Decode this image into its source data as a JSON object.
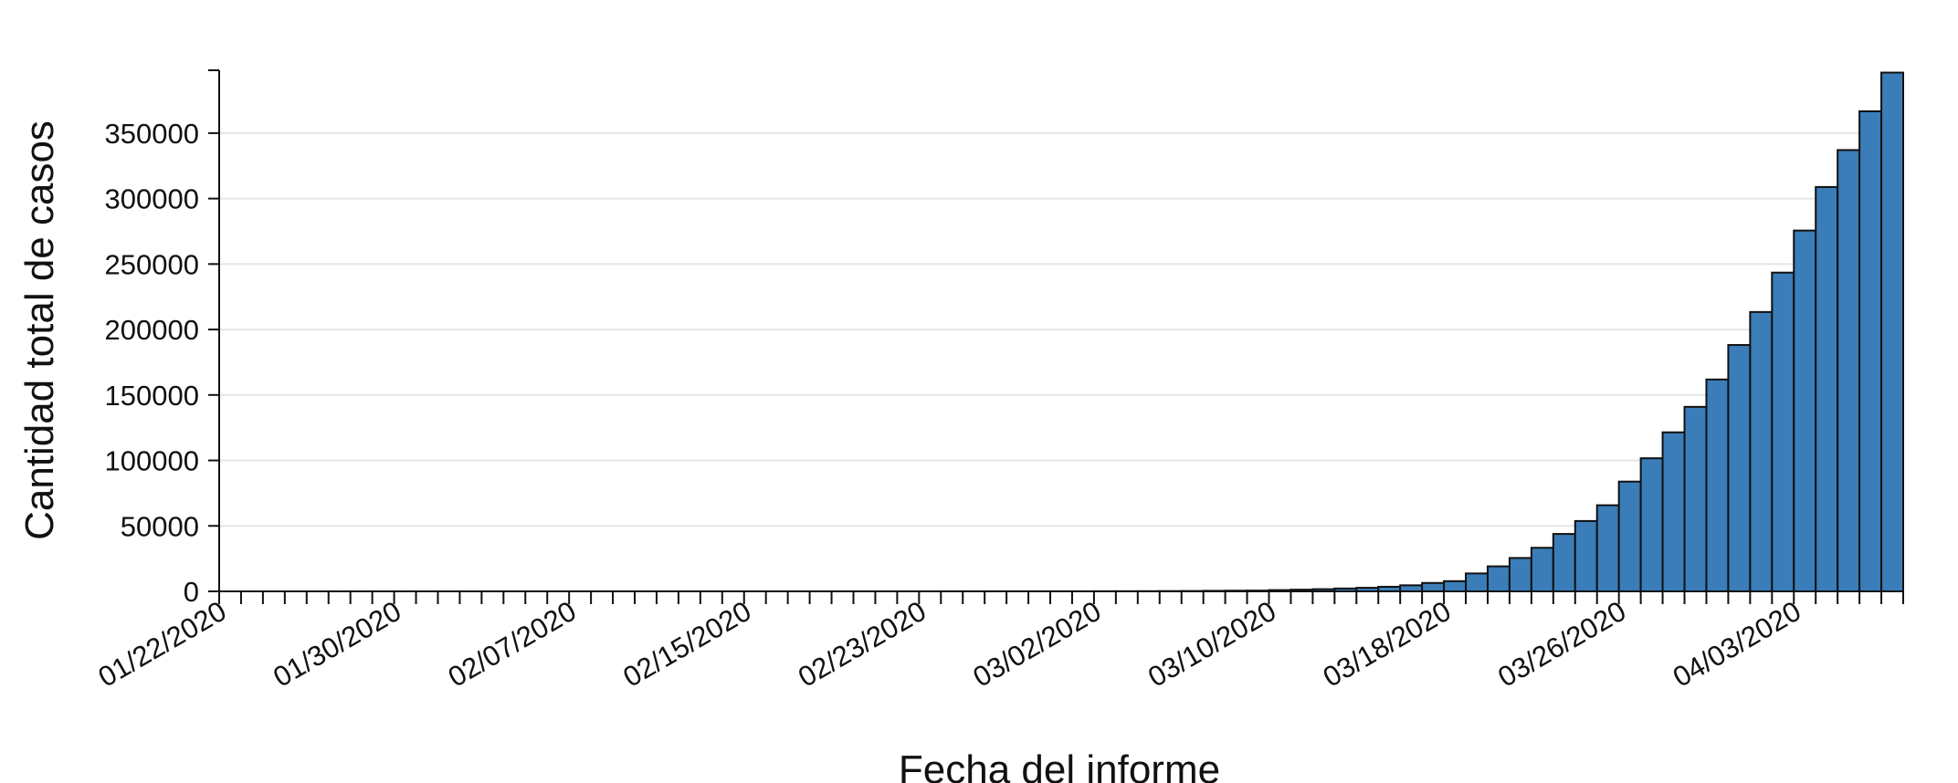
{
  "chart_data": {
    "type": "bar",
    "xlabel": "Fecha del informe",
    "ylabel": "Cantidad total de casos",
    "ylim": [
      0,
      398000
    ],
    "grid": true,
    "colors": {
      "bar_fill": "#3a7db8",
      "bar_stroke": "#111111",
      "grid": "#e6e6e6",
      "axis": "#111111"
    },
    "y_ticks": [
      {
        "value": 0,
        "label": "0"
      },
      {
        "value": 50000,
        "label": "50000"
      },
      {
        "value": 100000,
        "label": "100000"
      },
      {
        "value": 150000,
        "label": "150000"
      },
      {
        "value": 200000,
        "label": "200000"
      },
      {
        "value": 250000,
        "label": "250000"
      },
      {
        "value": 300000,
        "label": "300000"
      },
      {
        "value": 350000,
        "label": "350000"
      }
    ],
    "x_tick_labels": [
      "01/22/2020",
      "01/30/2020",
      "02/07/2020",
      "02/15/2020",
      "02/23/2020",
      "03/02/2020",
      "03/10/2020",
      "03/18/2020",
      "03/26/2020",
      "04/03/2020"
    ],
    "categories": [
      "01/22/2020",
      "01/23/2020",
      "01/24/2020",
      "01/25/2020",
      "01/26/2020",
      "01/27/2020",
      "01/28/2020",
      "01/29/2020",
      "01/30/2020",
      "01/31/2020",
      "02/01/2020",
      "02/02/2020",
      "02/03/2020",
      "02/04/2020",
      "02/05/2020",
      "02/06/2020",
      "02/07/2020",
      "02/08/2020",
      "02/09/2020",
      "02/10/2020",
      "02/11/2020",
      "02/12/2020",
      "02/13/2020",
      "02/14/2020",
      "02/15/2020",
      "02/16/2020",
      "02/17/2020",
      "02/18/2020",
      "02/19/2020",
      "02/20/2020",
      "02/21/2020",
      "02/22/2020",
      "02/23/2020",
      "02/24/2020",
      "02/25/2020",
      "02/26/2020",
      "02/27/2020",
      "02/28/2020",
      "02/29/2020",
      "03/01/2020",
      "03/02/2020",
      "03/03/2020",
      "03/04/2020",
      "03/05/2020",
      "03/06/2020",
      "03/07/2020",
      "03/08/2020",
      "03/09/2020",
      "03/10/2020",
      "03/11/2020",
      "03/12/2020",
      "03/13/2020",
      "03/14/2020",
      "03/15/2020",
      "03/16/2020",
      "03/17/2020",
      "03/18/2020",
      "03/19/2020",
      "03/20/2020",
      "03/21/2020",
      "03/22/2020",
      "03/23/2020",
      "03/24/2020",
      "03/25/2020",
      "03/26/2020",
      "03/27/2020",
      "03/28/2020",
      "03/29/2020",
      "03/30/2020",
      "03/31/2020",
      "04/01/2020",
      "04/02/2020",
      "04/03/2020",
      "04/04/2020",
      "04/05/2020",
      "04/06/2020",
      "04/07/2020"
    ],
    "values": [
      1,
      1,
      2,
      2,
      5,
      5,
      5,
      5,
      5,
      6,
      8,
      8,
      11,
      11,
      12,
      12,
      12,
      12,
      12,
      12,
      13,
      13,
      14,
      15,
      15,
      15,
      15,
      15,
      15,
      15,
      16,
      16,
      16,
      51,
      51,
      57,
      58,
      60,
      68,
      74,
      98,
      118,
      149,
      217,
      262,
      402,
      518,
      583,
      959,
      1281,
      1663,
      2179,
      2726,
      3499,
      4632,
      6421,
      7786,
      13680,
      19101,
      25493,
      33276,
      43847,
      53740,
      65778,
      83836,
      101657,
      121465,
      140909,
      161831,
      188172,
      213372,
      243453,
      275586,
      308850,
      337072,
      366667,
      396223
    ]
  }
}
